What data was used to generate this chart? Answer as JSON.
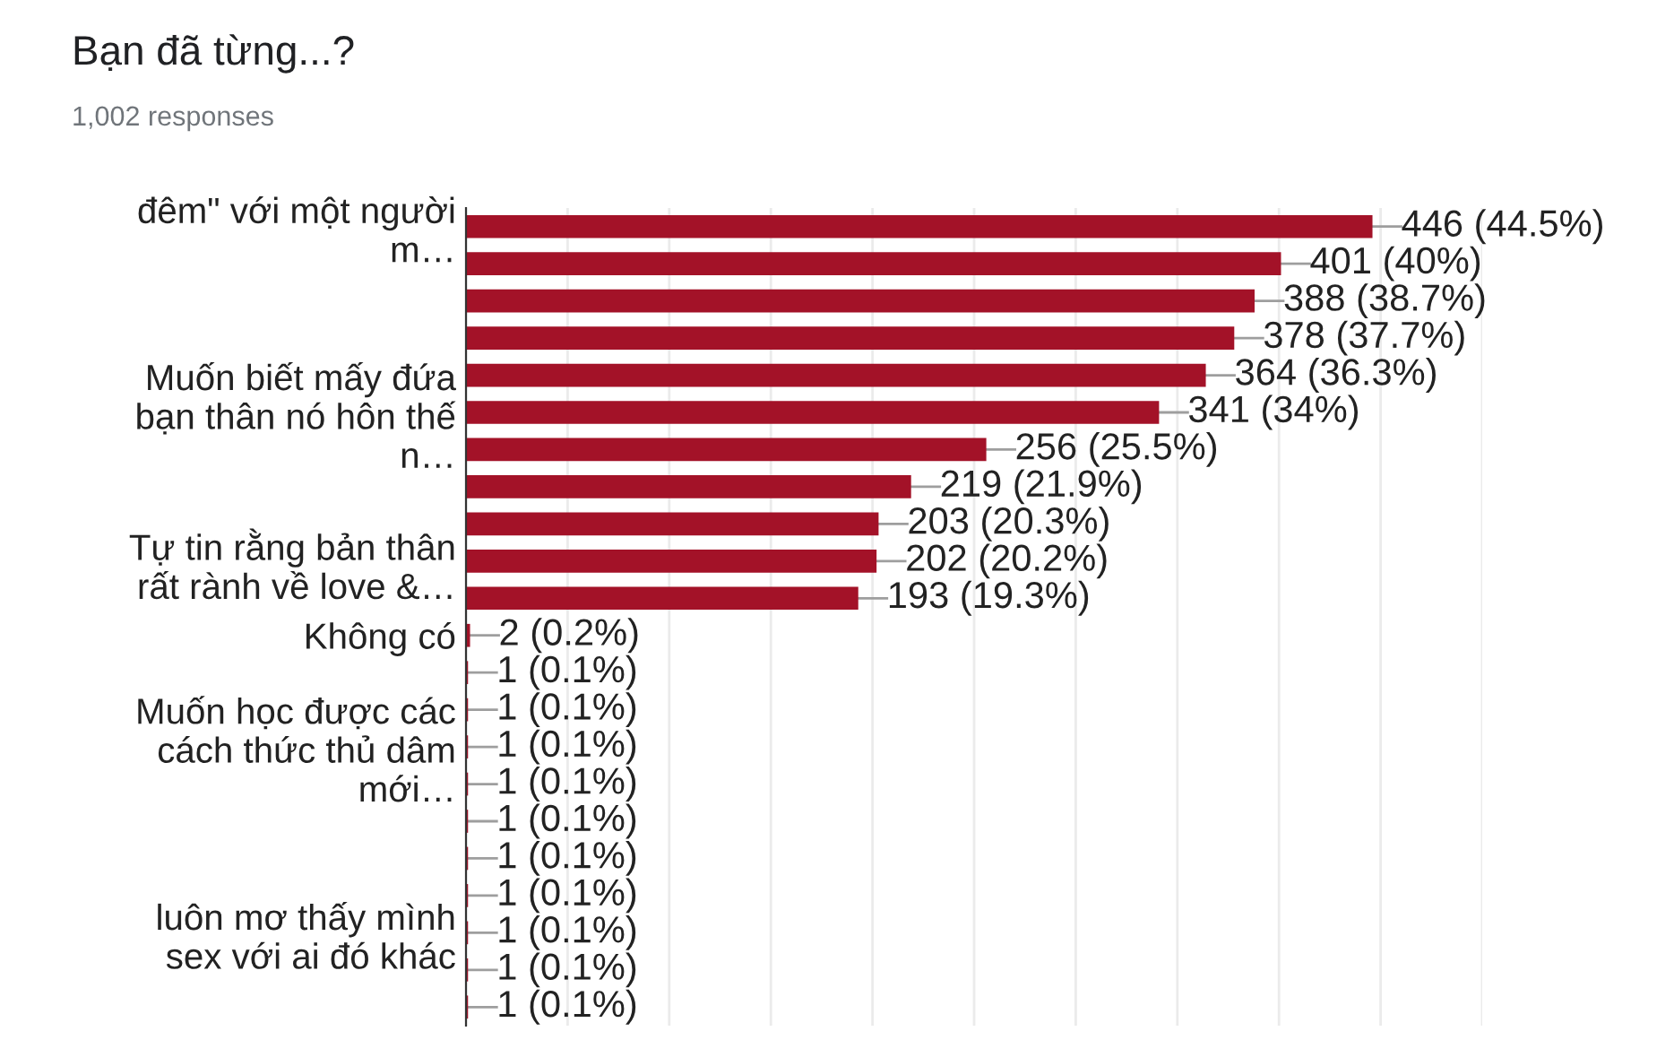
{
  "chart_data": {
    "type": "bar",
    "orientation": "horizontal",
    "title": "Bạn đã từng...?",
    "subtitle": "1,002 responses",
    "categories": [
      "đêm\" với một người\nm…",
      null,
      null,
      null,
      null,
      "Muốn biết mấy đứa\nbạn thân nó hôn thế\nn…",
      null,
      null,
      null,
      "Tự tin rằng bản thân\nrất rành về love &…",
      null,
      "Không có",
      null,
      null,
      "Muốn học được các\ncách thức thủ dâm\nmới…",
      null,
      null,
      null,
      null,
      "luôn mơ thấy mình\nsex với ai đó khác",
      null,
      null
    ],
    "values": [
      446,
      401,
      388,
      378,
      364,
      341,
      256,
      219,
      203,
      202,
      193,
      2,
      1,
      1,
      1,
      1,
      1,
      1,
      1,
      1,
      1,
      1
    ],
    "value_labels": [
      "446 (44.5%)",
      "401 (40%)",
      "388 (38.7%)",
      "378 (37.7%)",
      "364 (36.3%)",
      "341 (34%)",
      "256 (25.5%)",
      "219 (21.9%)",
      "203 (20.3%)",
      "202 (20.2%)",
      "193 (19.3%)",
      "2 (0.2%)",
      "1 (0.1%)",
      "1 (0.1%)",
      "1 (0.1%)",
      "1 (0.1%)",
      "1 (0.1%)",
      "1 (0.1%)",
      "1 (0.1%)",
      "1 (0.1%)",
      "1 (0.1%)",
      "1 (0.1%)"
    ],
    "color": "#a31228",
    "xlim": [
      0,
      500
    ],
    "xticks": [
      {
        "value": 0,
        "label": null
      },
      {
        "value": 50,
        "label": null
      },
      {
        "value": 100,
        "label": null
      },
      {
        "value": 150,
        "label": null
      },
      {
        "value": 200,
        "label": null
      },
      {
        "value": 250,
        "label": null
      },
      {
        "value": 300,
        "label": null
      },
      {
        "value": 350,
        "label": null
      },
      {
        "value": 400,
        "label": null
      },
      {
        "value": 450,
        "label": null
      },
      {
        "value": 500,
        "label": null
      }
    ],
    "grid": "x",
    "tick_labels": "y",
    "legend": false
  }
}
